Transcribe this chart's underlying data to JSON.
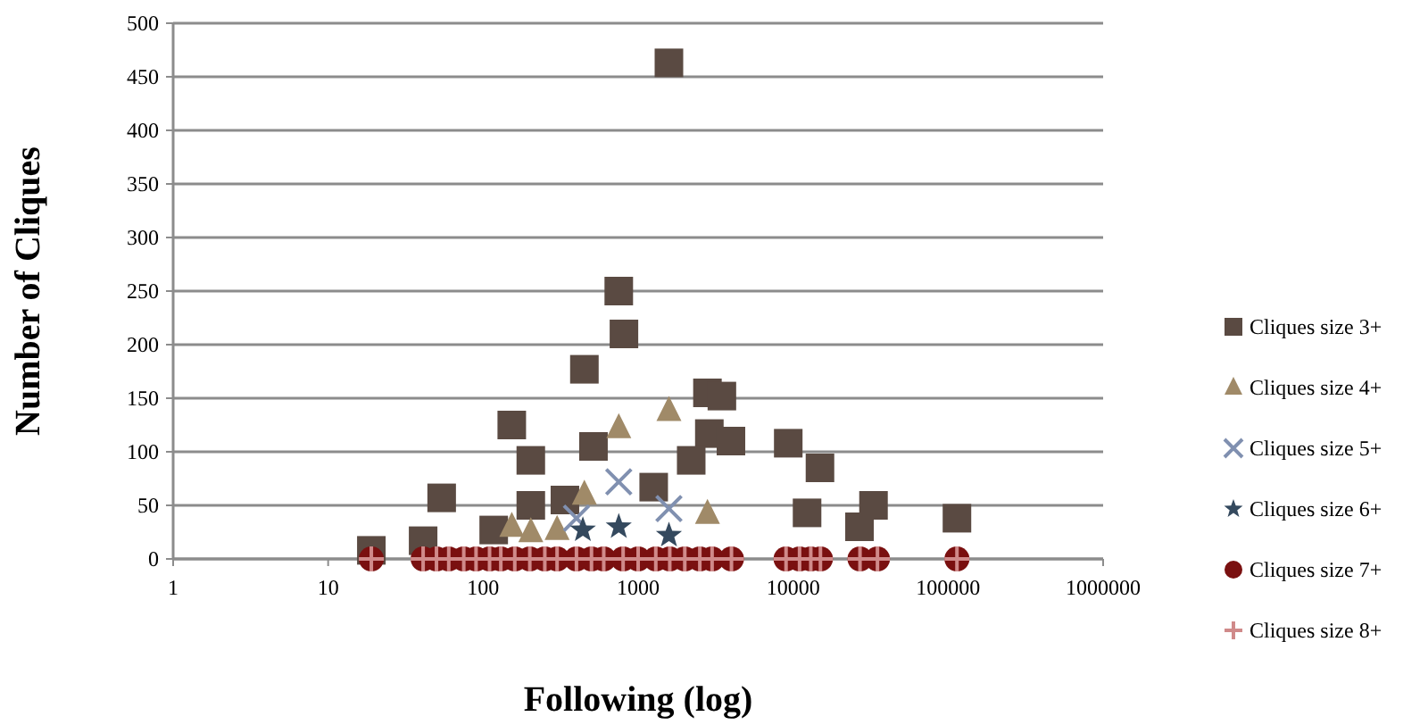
{
  "chart_data": {
    "type": "scatter",
    "xlabel": "Following (log)",
    "ylabel": "Number of Cliques",
    "log": "x",
    "xlim": [
      1,
      1000000
    ],
    "xticks": [
      1,
      10,
      100,
      1000,
      10000,
      100000,
      1000000
    ],
    "ylim": [
      0,
      500
    ],
    "yticks": [
      0,
      50,
      100,
      150,
      200,
      250,
      300,
      350,
      400,
      450,
      500
    ],
    "grid": "y",
    "legend": "right",
    "series": [
      {
        "name": "Cliques size 3+",
        "color": "#5a4a42",
        "marker": "square",
        "x": [
          19,
          41,
          54,
          117,
          153,
          203,
          203,
          337,
          450,
          515,
          750,
          810,
          1260,
          1580,
          2800,
          3470,
          2880,
          2200,
          3970,
          9300,
          14900,
          12300,
          26800,
          33000,
          114000
        ],
        "values": [
          8,
          17,
          57,
          27,
          125,
          92,
          50,
          55,
          177,
          105,
          250,
          210,
          67,
          463,
          155,
          152,
          117,
          92,
          110,
          108,
          85,
          43,
          30,
          50,
          38
        ]
      },
      {
        "name": "Cliques size 4+",
        "color": "#a08a68",
        "marker": "triangle",
        "x": [
          153,
          203,
          300,
          450,
          750,
          1580,
          2800
        ],
        "values": [
          30,
          25,
          27,
          60,
          122,
          138,
          42
        ]
      },
      {
        "name": "Cliques size 5+",
        "color": "#8090b0",
        "marker": "cross",
        "x": [
          400,
          750,
          1580
        ],
        "values": [
          38,
          72,
          47
        ]
      },
      {
        "name": "Cliques size 6+",
        "color": "#34495e",
        "marker": "star",
        "x": [
          440,
          750,
          1580
        ],
        "values": [
          27,
          30,
          22
        ]
      },
      {
        "name": "Cliques size 7+",
        "color": "#7a1010",
        "marker": "circle",
        "x": [
          19,
          41,
          50,
          60,
          75,
          90,
          110,
          130,
          160,
          200,
          250,
          300,
          400,
          500,
          600,
          800,
          1000,
          1300,
          1600,
          2000,
          2500,
          3000,
          4000,
          9000,
          11000,
          13000,
          15000,
          27000,
          35000,
          114000
        ],
        "values": [
          0,
          0,
          0,
          0,
          0,
          0,
          0,
          0,
          0,
          0,
          0,
          0,
          0,
          0,
          0,
          0,
          0,
          0,
          0,
          0,
          0,
          0,
          0,
          0,
          0,
          0,
          0,
          0,
          0,
          0
        ]
      },
      {
        "name": "Cliques size 8+",
        "color": "#d08a8a",
        "marker": "cross",
        "x": [
          19,
          41,
          50,
          60,
          75,
          90,
          110,
          130,
          160,
          200,
          250,
          300,
          400,
          500,
          600,
          800,
          1000,
          1300,
          1600,
          2000,
          2500,
          3000,
          4000,
          9000,
          11000,
          13000,
          15000,
          27000,
          35000,
          114000
        ],
        "values": [
          0,
          0,
          0,
          0,
          0,
          0,
          0,
          0,
          0,
          0,
          0,
          0,
          0,
          0,
          0,
          0,
          0,
          0,
          0,
          0,
          0,
          0,
          0,
          0,
          0,
          0,
          0,
          0,
          0,
          0
        ]
      }
    ]
  }
}
